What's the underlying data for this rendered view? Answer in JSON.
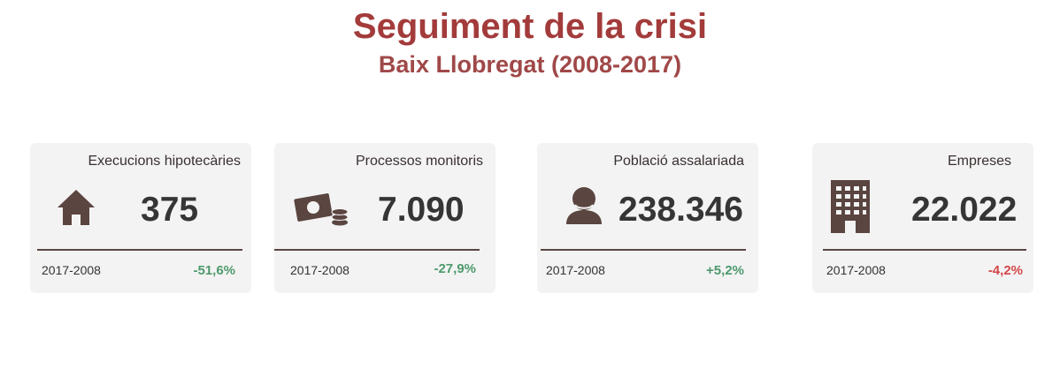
{
  "header": {
    "title": "Seguiment de la crisi",
    "subtitle": "Baix Llobregat (2008-2017)"
  },
  "colors": {
    "title": "#a33b3b",
    "icon": "#5a4540",
    "positive": "#4e9a6e",
    "negative": "#d4474a"
  },
  "cards": [
    {
      "label": "Execucions hipotecàries",
      "value": "375",
      "period": "2017-2008",
      "change": "-51,6%",
      "trend": "positive",
      "icon": "house-icon"
    },
    {
      "label": "Processos monitoris",
      "value": "7.090",
      "period": "2017-2008",
      "change": "-27,9%",
      "trend": "positive",
      "icon": "money-coins-icon"
    },
    {
      "label": "Població assalariada",
      "value": "238.346",
      "period": "2017-2008",
      "change": "+5,2%",
      "trend": "positive",
      "icon": "person-icon"
    },
    {
      "label": "Empreses",
      "value": "22.022",
      "period": "2017-2008",
      "change": "-4,2%",
      "trend": "negative",
      "icon": "building-icon"
    }
  ]
}
